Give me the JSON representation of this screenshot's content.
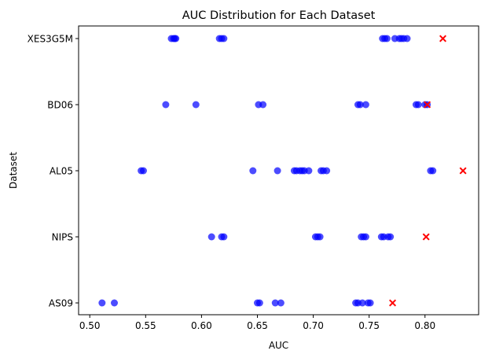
{
  "chart_data": {
    "type": "scatter",
    "title": "AUC Distribution for Each Dataset",
    "xlabel": "AUC",
    "ylabel": "Dataset",
    "xlim": [
      0.49,
      0.848
    ],
    "xticks": [
      0.5,
      0.55,
      0.6,
      0.65,
      0.7,
      0.75,
      0.8
    ],
    "xtick_labels": [
      "0.50",
      "0.55",
      "0.60",
      "0.65",
      "0.70",
      "0.75",
      "0.80"
    ],
    "categories": [
      "AS09",
      "NIPS",
      "AL05",
      "BD06",
      "XES3G5M"
    ],
    "grid": false,
    "legend": "none",
    "colors": {
      "points": "#0000ff",
      "highlight": "#ff0000"
    },
    "series": [
      {
        "marker": "circle",
        "points": [
          {
            "category": "XES3G5M",
            "values": [
              0.573,
              0.575,
              0.576,
              0.577,
              0.616,
              0.618,
              0.62,
              0.762,
              0.764,
              0.766,
              0.773,
              0.777,
              0.779,
              0.781,
              0.784
            ]
          },
          {
            "category": "BD06",
            "values": [
              0.568,
              0.595,
              0.651,
              0.655,
              0.74,
              0.742,
              0.747,
              0.792,
              0.794,
              0.8,
              0.802
            ]
          },
          {
            "category": "AL05",
            "values": [
              0.546,
              0.548,
              0.646,
              0.668,
              0.683,
              0.685,
              0.688,
              0.69,
              0.692,
              0.696,
              0.707,
              0.709,
              0.712,
              0.805,
              0.807
            ]
          },
          {
            "category": "NIPS",
            "values": [
              0.609,
              0.618,
              0.62,
              0.702,
              0.704,
              0.706,
              0.743,
              0.745,
              0.747,
              0.761,
              0.763,
              0.767,
              0.769
            ]
          },
          {
            "category": "AS09",
            "values": [
              0.511,
              0.522,
              0.65,
              0.652,
              0.666,
              0.671,
              0.738,
              0.74,
              0.744,
              0.749,
              0.751
            ]
          }
        ]
      },
      {
        "marker": "x",
        "points": [
          {
            "category": "XES3G5M",
            "values": [
              0.816
            ]
          },
          {
            "category": "BD06",
            "values": [
              0.802
            ]
          },
          {
            "category": "AL05",
            "values": [
              0.834
            ]
          },
          {
            "category": "NIPS",
            "values": [
              0.801
            ]
          },
          {
            "category": "AS09",
            "values": [
              0.771
            ]
          }
        ]
      }
    ]
  }
}
